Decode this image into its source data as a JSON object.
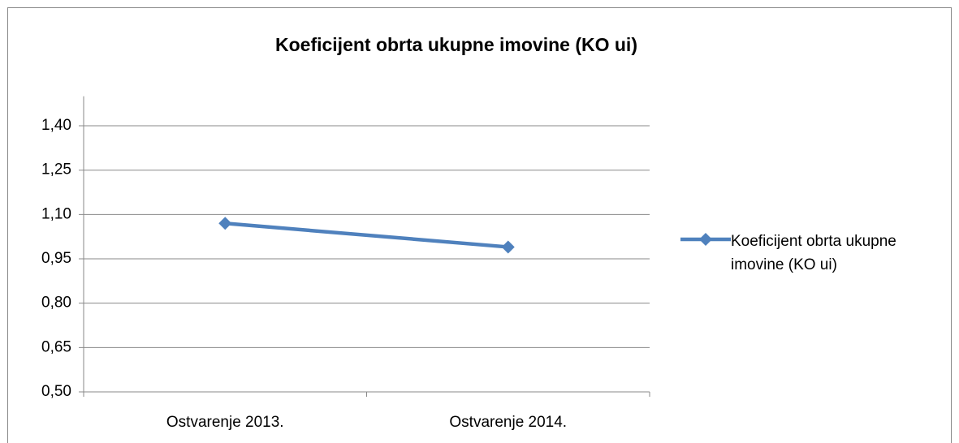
{
  "chart_data": {
    "type": "line",
    "title": "Koeficijent obrta ukupne imovine (KO ui)",
    "categories": [
      "Ostvarenje 2013.",
      "Ostvarenje 2014."
    ],
    "series": [
      {
        "name": "Koeficijent obrta ukupne imovine (KO ui)",
        "color": "#4f81bd",
        "values": [
          1.07,
          0.99
        ]
      }
    ],
    "ylim": [
      0.5,
      1.5
    ],
    "yticks": [
      {
        "value": 0.5,
        "label": "0,50"
      },
      {
        "value": 0.65,
        "label": "0,65"
      },
      {
        "value": 0.8,
        "label": "0,80"
      },
      {
        "value": 0.95,
        "label": "0,95"
      },
      {
        "value": 1.1,
        "label": "1,10"
      },
      {
        "value": 1.25,
        "label": "1,25"
      },
      {
        "value": 1.4,
        "label": "1,40"
      }
    ],
    "grid": true,
    "legend": "right"
  }
}
